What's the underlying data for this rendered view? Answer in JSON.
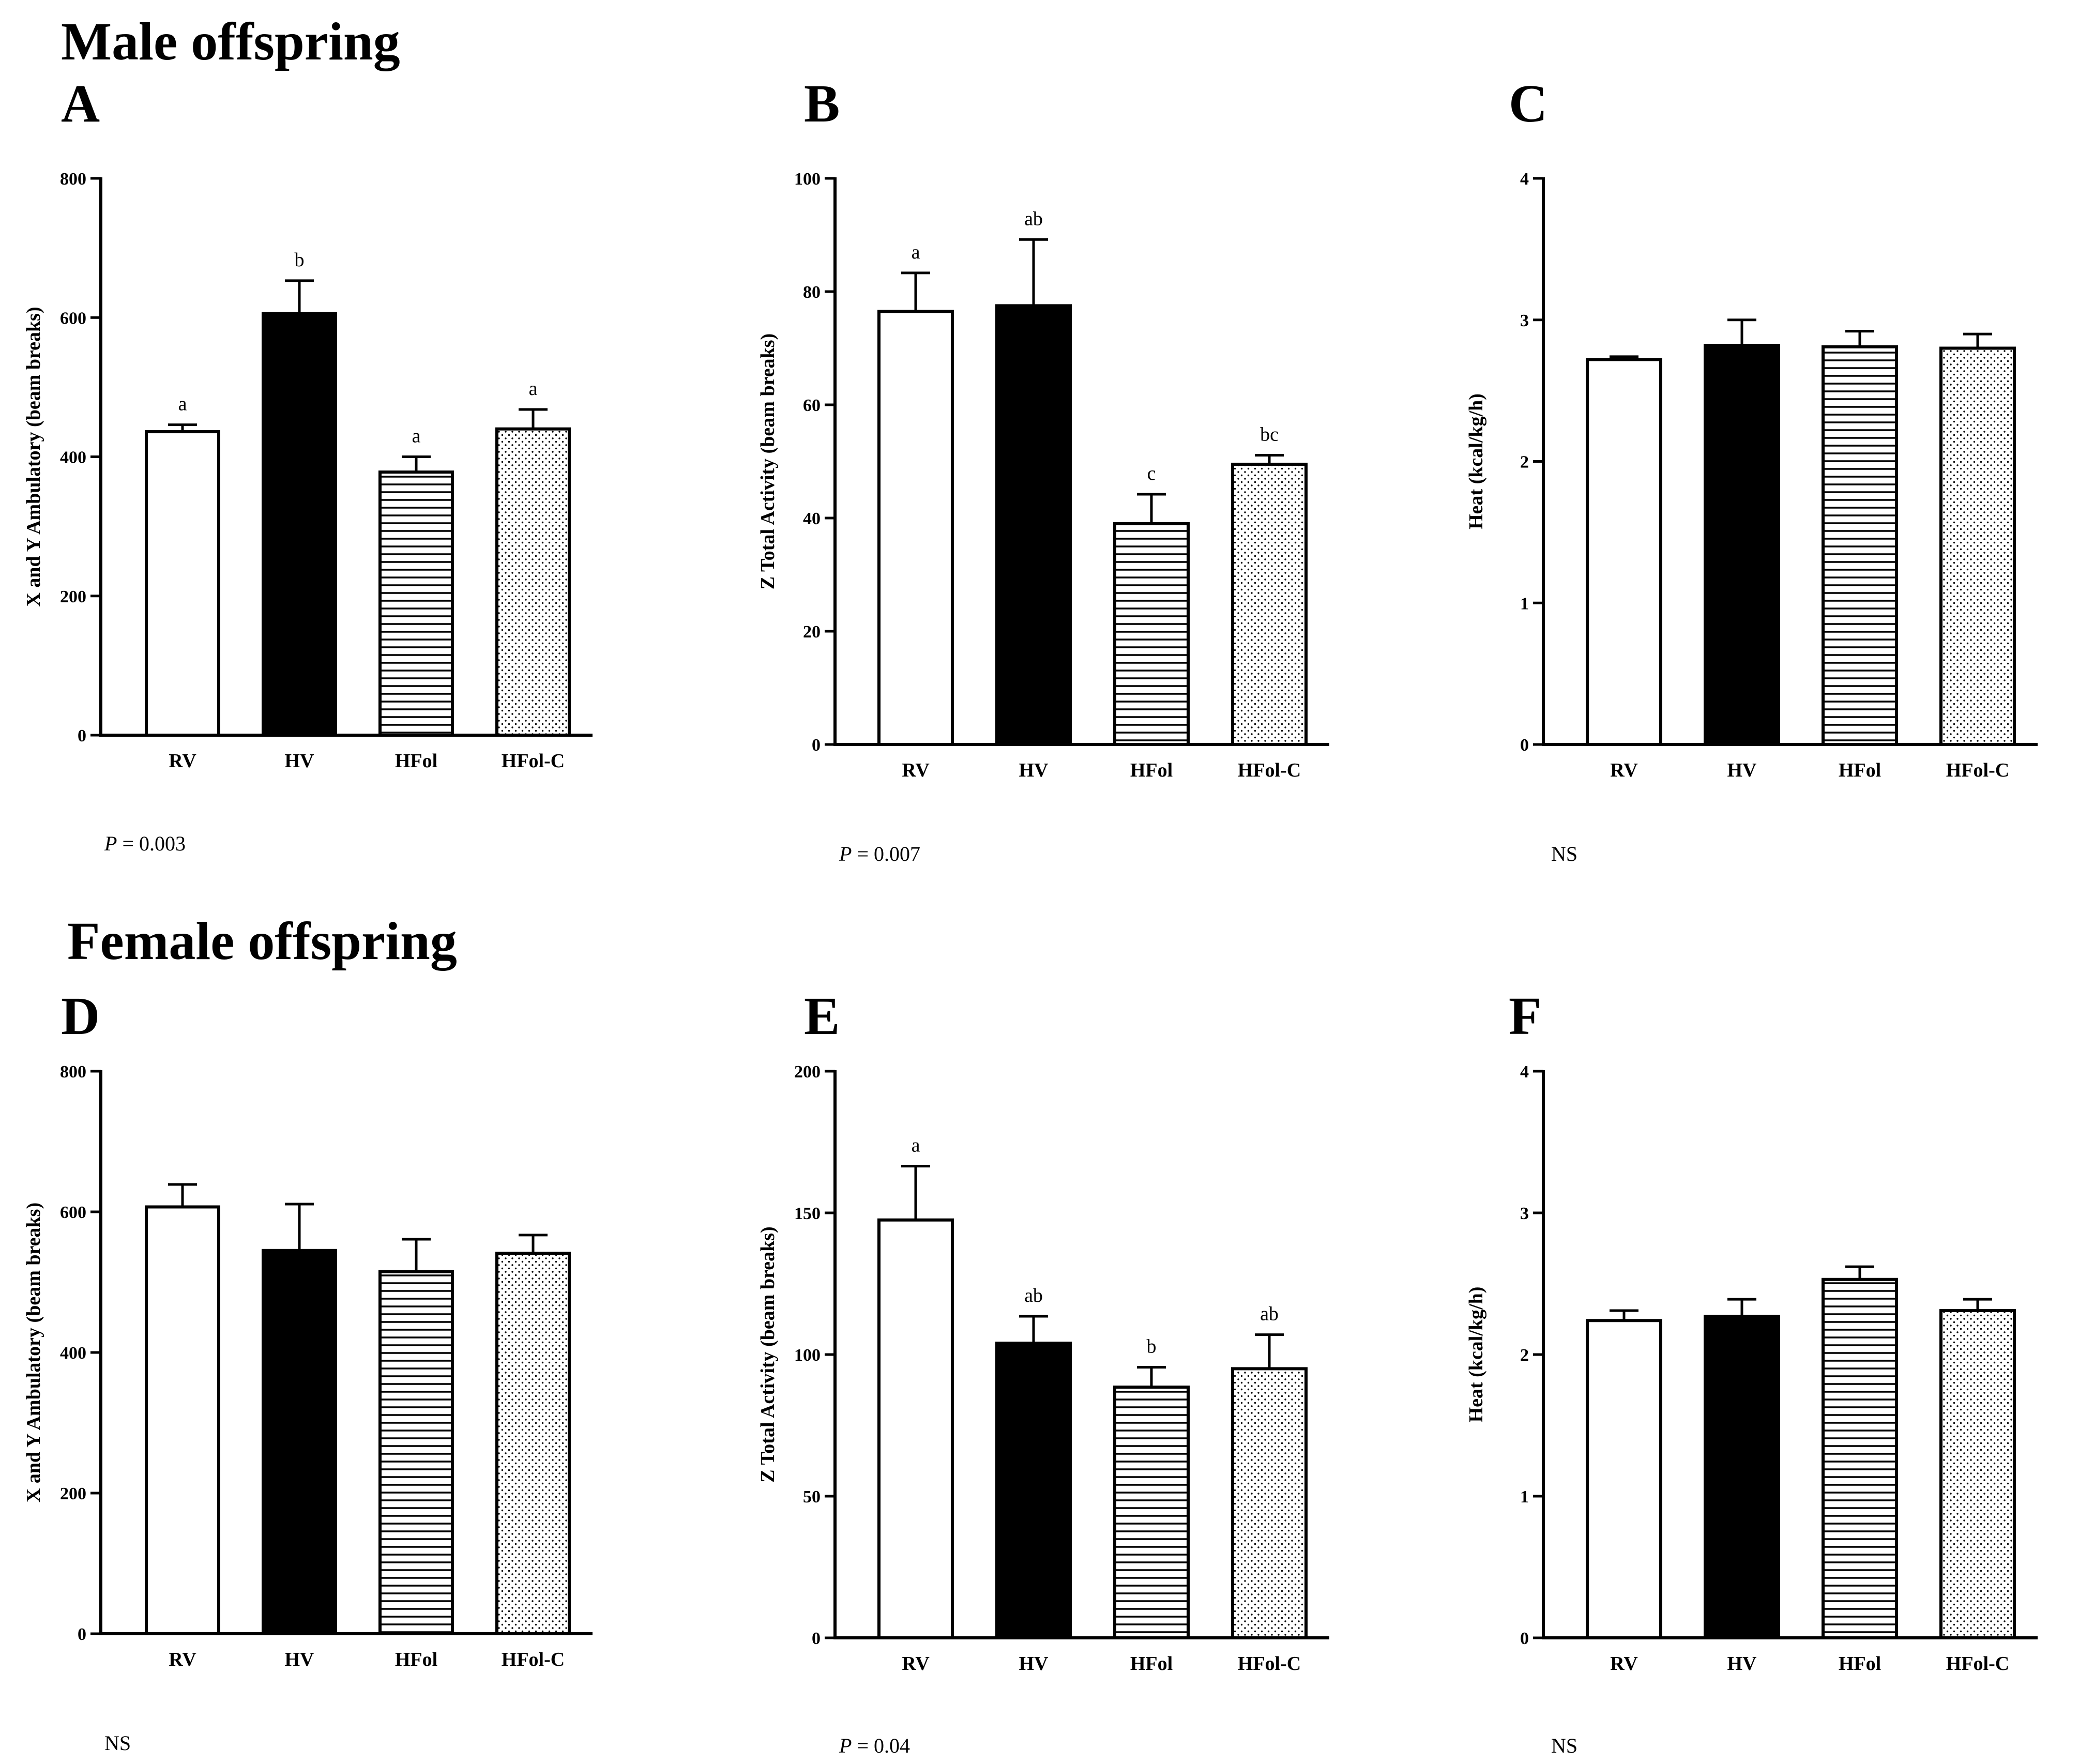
{
  "headings": {
    "male": "Male offspring",
    "female": "Female offspring"
  },
  "colors": {
    "ink": "#000000",
    "open_fill": "#ffffff",
    "solid_fill": "#000000"
  },
  "bar_styles": [
    "open",
    "solid",
    "horizontal-lines",
    "dotted"
  ],
  "chart_data": [
    {
      "panel": "A",
      "type": "bar",
      "title": "",
      "xlabel": "",
      "ylabel": "X and Y Ambulatory (beam breaks)",
      "categories": [
        "RV",
        "HV",
        "HFol",
        "HFol-C"
      ],
      "values": [
        436,
        606,
        378,
        440
      ],
      "errors": [
        10,
        47,
        22,
        28
      ],
      "labels": [
        "a",
        "b",
        "a",
        "a"
      ],
      "ylim": [
        0,
        800
      ],
      "yticks": [
        0,
        200,
        400,
        600,
        800
      ],
      "stat_prefix": "P",
      "stat_text": " = 0.003"
    },
    {
      "panel": "B",
      "type": "bar",
      "title": "",
      "xlabel": "",
      "ylabel": "Z Total Activity (beam breaks)",
      "categories": [
        "RV",
        "HV",
        "HFol",
        "HFol-C"
      ],
      "values": [
        76.5,
        77.5,
        39,
        49.5
      ],
      "errors": [
        6.8,
        11.7,
        5.2,
        1.6
      ],
      "labels": [
        "a",
        "ab",
        "c",
        "bc"
      ],
      "ylim": [
        0,
        100
      ],
      "yticks": [
        0,
        20,
        40,
        60,
        80,
        100
      ],
      "stat_prefix": "P",
      "stat_text": " = 0.007"
    },
    {
      "panel": "C",
      "type": "bar",
      "title": "",
      "xlabel": "",
      "ylabel": "Heat (kcal/kg/h)",
      "categories": [
        "RV",
        "HV",
        "HFol",
        "HFol-C"
      ],
      "values": [
        2.72,
        2.82,
        2.81,
        2.8
      ],
      "errors": [
        0.02,
        0.18,
        0.11,
        0.1
      ],
      "labels": [
        "",
        "",
        "",
        ""
      ],
      "ylim": [
        0,
        4
      ],
      "yticks": [
        0,
        1,
        2,
        3,
        4
      ],
      "stat_prefix": "",
      "stat_text": "NS"
    },
    {
      "panel": "D",
      "type": "bar",
      "title": "",
      "xlabel": "",
      "ylabel": "X and Y Ambulatory (beam breaks)",
      "categories": [
        "RV",
        "HV",
        "HFol",
        "HFol-C"
      ],
      "values": [
        607,
        545,
        515,
        541
      ],
      "errors": [
        32,
        66,
        46,
        26
      ],
      "labels": [
        "",
        "",
        "",
        ""
      ],
      "ylim": [
        0,
        800
      ],
      "yticks": [
        0,
        200,
        400,
        600,
        800
      ],
      "stat_prefix": "",
      "stat_text": "NS"
    },
    {
      "panel": "E",
      "type": "bar",
      "title": "",
      "xlabel": "",
      "ylabel": "Z Total Activity (beam breaks)",
      "categories": [
        "RV",
        "HV",
        "HFol",
        "HFol-C"
      ],
      "values": [
        147.5,
        104,
        88.5,
        95
      ],
      "errors": [
        19,
        9.5,
        7,
        12
      ],
      "labels": [
        "a",
        "ab",
        "b",
        "ab"
      ],
      "ylim": [
        0,
        200
      ],
      "yticks": [
        0,
        50,
        100,
        150,
        200
      ],
      "stat_prefix": "P",
      "stat_text": " = 0.04"
    },
    {
      "panel": "F",
      "type": "bar",
      "title": "",
      "xlabel": "",
      "ylabel": "Heat (kcal/kg/h)",
      "categories": [
        "RV",
        "HV",
        "HFol",
        "HFol-C"
      ],
      "values": [
        2.24,
        2.27,
        2.53,
        2.31
      ],
      "errors": [
        0.07,
        0.12,
        0.09,
        0.08
      ],
      "labels": [
        "",
        "",
        "",
        ""
      ],
      "ylim": [
        0,
        4
      ],
      "yticks": [
        0,
        1,
        2,
        3,
        4
      ],
      "stat_prefix": "",
      "stat_text": "NS"
    }
  ]
}
